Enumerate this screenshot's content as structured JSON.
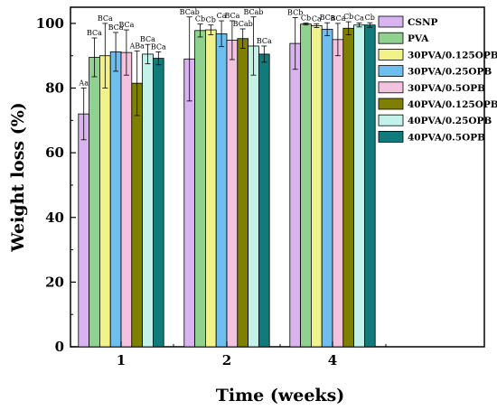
{
  "chart_data": {
    "type": "bar",
    "title": "",
    "xlabel": "Time (weeks)",
    "ylabel": "Weight loss (%)",
    "categories": [
      "1",
      "2",
      "4"
    ],
    "ylim": [
      0,
      105
    ],
    "yticks": [
      0,
      20,
      40,
      60,
      80,
      100
    ],
    "grid": false,
    "legend_position": "top-right",
    "series": [
      {
        "name": "CSNP",
        "color": "#d9b3f0",
        "values": [
          72.0,
          89.0,
          93.8
        ],
        "errors": [
          8.0,
          13.0,
          8.0
        ],
        "labels": [
          "Aa",
          "BCab",
          "BCb"
        ]
      },
      {
        "name": "PVA",
        "color": "#8fd18f",
        "values": [
          89.5,
          97.8,
          99.8
        ],
        "errors": [
          6.0,
          2.0,
          0.3
        ],
        "labels": [
          "BCa",
          "Cb",
          "Cb"
        ]
      },
      {
        "name": "30PVA/0.125OPB",
        "color": "#f2f28a",
        "values": [
          90.0,
          98.0,
          99.3
        ],
        "errors": [
          10.0,
          1.5,
          0.6
        ],
        "labels": [
          "BCa",
          "Cb",
          "Ca"
        ]
      },
      {
        "name": "30PVA/0.25OPB",
        "color": "#6ebef0",
        "values": [
          91.2,
          96.8,
          98.2
        ],
        "errors": [
          6.0,
          4.0,
          2.0
        ],
        "labels": [
          "BCa",
          "Ca",
          "BCa"
        ]
      },
      {
        "name": "30PVA/0.5OPB",
        "color": "#f2c2df",
        "values": [
          91.0,
          94.8,
          95.0
        ],
        "errors": [
          7.0,
          6.0,
          5.0
        ],
        "labels": [
          "BCa",
          "BCa",
          "BCa"
        ]
      },
      {
        "name": "40PVA/0.125OPB",
        "color": "#808000",
        "values": [
          81.5,
          95.3,
          98.5
        ],
        "errors": [
          10.0,
          3.0,
          2.0
        ],
        "labels": [
          "ABa",
          "BCab",
          "Cb"
        ]
      },
      {
        "name": "40PVA/0.25OPB",
        "color": "#c2f2ea",
        "values": [
          90.5,
          93.0,
          99.5
        ],
        "errors": [
          3.0,
          9.0,
          0.6
        ],
        "labels": [
          "BCa",
          "BCab",
          "Ca"
        ]
      },
      {
        "name": "40PVA/0.5OPB",
        "color": "#117a7a",
        "values": [
          89.2,
          90.5,
          99.5
        ],
        "errors": [
          2.0,
          2.5,
          0.7
        ],
        "labels": [
          "BCa",
          "BCa",
          "Cb"
        ]
      }
    ]
  }
}
